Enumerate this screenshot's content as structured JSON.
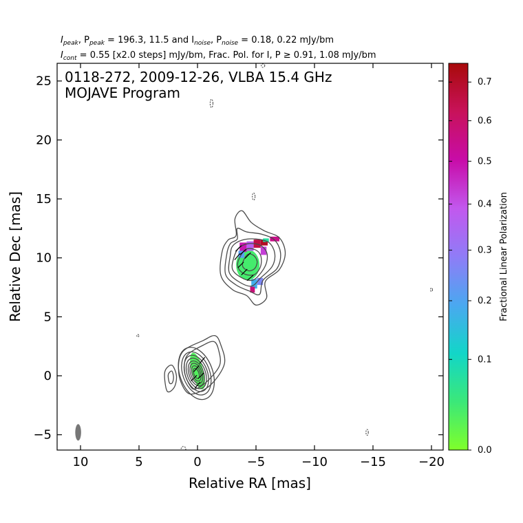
{
  "chart_data": {
    "type": "contour",
    "header": {
      "line1": {
        "p1": "I",
        "s1": "peak",
        "p2": ", P",
        "s2": "peak",
        "p3": " = 196.3, 11.5 and I",
        "s3": "noise",
        "p4": ", P",
        "s4": "noise",
        "p5": " = 0.18, 0.22 mJy/bm"
      },
      "line2": {
        "p1": "I",
        "s1": "cont",
        "p2": " = 0.55 [x2.0 steps] mJy/bm, Frac. Pol. for I, P ≥ 0.91, 1.08 mJy/bm"
      }
    },
    "annotation": {
      "line1": "0118-272, 2009-12-26, VLBA 15.4 GHz",
      "line2": "MOJAVE Program"
    },
    "xlabel": "Relative RA [mas]",
    "ylabel": "Relative Dec [mas]",
    "xlim": [
      12,
      -21
    ],
    "ylim": [
      -6.3,
      26.5
    ],
    "x_ticks": [
      10,
      5,
      0,
      -5,
      -10,
      -15,
      -20
    ],
    "x_tick_labels": [
      "10",
      "5",
      "0",
      "−5",
      "−10",
      "−15",
      "−20"
    ],
    "y_ticks": [
      -5,
      0,
      5,
      10,
      15,
      20,
      25
    ],
    "y_tick_labels": [
      "−5",
      "0",
      "5",
      "10",
      "15",
      "20",
      "25"
    ],
    "colorbar": {
      "label": "Fractional Linear Polarization",
      "range": [
        0.0,
        0.75
      ],
      "ticks": [
        0.0,
        0.1,
        0.2,
        0.3,
        0.4,
        0.5,
        0.6,
        0.7
      ],
      "tick_labels": [
        "0.0",
        "0.1",
        "0.2",
        "0.3",
        "0.4",
        "0.5",
        "0.6",
        "0.7"
      ],
      "colors": [
        "#7fff2a",
        "#3be879",
        "#12d6c8",
        "#4aa8f0",
        "#8f7cf7",
        "#c258ee",
        "#c80ca8",
        "#c8125a",
        "#a80a0a"
      ]
    },
    "contour_color": "#4a4a4a",
    "components": [
      {
        "name": "core",
        "center": [
          0.1,
          0.2
        ],
        "ellipses": [
          {
            "rx": 1.4,
            "ry": 2.3,
            "angle": -20
          },
          {
            "rx": 1.15,
            "ry": 1.9,
            "angle": -20
          },
          {
            "rx": 0.95,
            "ry": 1.6,
            "angle": -20
          },
          {
            "rx": 0.78,
            "ry": 1.35,
            "angle": -20
          },
          {
            "rx": 0.62,
            "ry": 1.1,
            "angle": -20
          },
          {
            "rx": 0.48,
            "ry": 0.9,
            "angle": -20
          },
          {
            "rx": 0.35,
            "ry": 0.68,
            "angle": -20
          },
          {
            "rx": 0.22,
            "ry": 0.45,
            "angle": -20
          }
        ],
        "outer_contours": [
          [
            [
              1.0,
              -1.3
            ],
            [
              1.6,
              0.2
            ],
            [
              1.3,
              2.0
            ],
            [
              -0.5,
              3.0
            ],
            [
              -1.5,
              3.4
            ],
            [
              -2.0,
              2.6
            ],
            [
              -2.3,
              1.0
            ],
            [
              -1.2,
              -0.7
            ],
            [
              0.2,
              -1.5
            ]
          ],
          [
            [
              0.6,
              -0.9
            ],
            [
              1.1,
              0.3
            ],
            [
              0.9,
              1.7
            ],
            [
              -0.5,
              2.6
            ],
            [
              -1.4,
              2.9
            ],
            [
              -1.8,
              2.2
            ],
            [
              -1.9,
              0.9
            ],
            [
              -0.9,
              -0.4
            ],
            [
              0.1,
              -1.1
            ]
          ]
        ],
        "polarization": {
          "center": [
            0.0,
            0.4
          ],
          "rx": 0.5,
          "ry": 1.6,
          "angle": -15,
          "fraction": 0.06
        }
      },
      {
        "name": "west-outlier",
        "contours": [
          [
            [
              2.6,
              -1.3
            ],
            [
              2.8,
              0.3
            ],
            [
              2.2,
              0.9
            ],
            [
              1.8,
              0.0
            ],
            [
              2.0,
              -1.0
            ]
          ],
          [
            [
              2.4,
              -0.6
            ],
            [
              2.5,
              0.1
            ],
            [
              2.2,
              0.4
            ],
            [
              2.05,
              -0.1
            ],
            [
              2.15,
              -0.6
            ]
          ]
        ]
      },
      {
        "name": "jet",
        "contours": [
          [
            [
              -2.1,
              10.5
            ],
            [
              -2.0,
              8.5
            ],
            [
              -3.0,
              7.3
            ],
            [
              -4.2,
              6.8
            ],
            [
              -5.0,
              6.0
            ],
            [
              -5.9,
              6.6
            ],
            [
              -5.8,
              8.0
            ],
            [
              -7.0,
              9.0
            ],
            [
              -7.5,
              10.4
            ],
            [
              -7.0,
              11.7
            ],
            [
              -5.7,
              12.3
            ],
            [
              -4.6,
              13.0
            ],
            [
              -3.8,
              14.0
            ],
            [
              -3.2,
              13.3
            ],
            [
              -3.3,
              11.9
            ],
            [
              -2.6,
              11.5
            ]
          ],
          [
            [
              -2.5,
              10.3
            ],
            [
              -2.4,
              8.6
            ],
            [
              -3.3,
              7.7
            ],
            [
              -4.4,
              7.2
            ],
            [
              -5.3,
              6.9
            ],
            [
              -5.6,
              8.1
            ],
            [
              -6.8,
              9.1
            ],
            [
              -7.1,
              10.4
            ],
            [
              -6.6,
              11.5
            ],
            [
              -5.5,
              12.0
            ],
            [
              -4.2,
              12.2
            ],
            [
              -3.4,
              12.5
            ],
            [
              -3.4,
              11.6
            ],
            [
              -2.8,
              11.2
            ]
          ],
          [
            [
              -2.8,
              10.2
            ],
            [
              -2.7,
              8.8
            ],
            [
              -3.5,
              8.0
            ],
            [
              -4.6,
              7.6
            ],
            [
              -5.4,
              8.3
            ],
            [
              -6.4,
              9.3
            ],
            [
              -6.6,
              10.4
            ],
            [
              -6.1,
              11.3
            ],
            [
              -5.0,
              11.6
            ],
            [
              -3.8,
              11.5
            ],
            [
              -3.0,
              11.0
            ]
          ],
          [
            [
              -3.1,
              10.0
            ],
            [
              -3.0,
              9.0
            ],
            [
              -3.8,
              8.3
            ],
            [
              -4.7,
              8.1
            ],
            [
              -5.4,
              8.7
            ],
            [
              -5.9,
              9.6
            ],
            [
              -5.9,
              10.5
            ],
            [
              -5.3,
              11.1
            ],
            [
              -4.3,
              11.2
            ],
            [
              -3.5,
              10.8
            ]
          ],
          [
            [
              -3.5,
              9.8
            ],
            [
              -3.5,
              9.1
            ],
            [
              -4.1,
              8.6
            ],
            [
              -4.9,
              8.6
            ],
            [
              -5.4,
              9.3
            ],
            [
              -5.4,
              10.2
            ],
            [
              -4.9,
              10.7
            ],
            [
              -4.1,
              10.7
            ]
          ],
          [
            [
              -3.9,
              9.7
            ],
            [
              -3.9,
              9.2
            ],
            [
              -4.4,
              8.9
            ],
            [
              -4.9,
              9.1
            ],
            [
              -5.1,
              9.7
            ],
            [
              -4.8,
              10.2
            ],
            [
              -4.3,
              10.3
            ]
          ]
        ],
        "polarization_cells": [
          {
            "x": -3.6,
            "y": 10.9,
            "w": 0.6,
            "h": 0.8,
            "fraction": 0.55
          },
          {
            "x": -4.2,
            "y": 11.0,
            "w": 0.6,
            "h": 0.8,
            "fraction": 0.45
          },
          {
            "x": -4.8,
            "y": 11.2,
            "w": 0.6,
            "h": 0.7,
            "fraction": 0.68
          },
          {
            "x": -5.4,
            "y": 11.3,
            "w": 0.6,
            "h": 0.5,
            "fraction": 0.72
          },
          {
            "x": -5.4,
            "y": 10.6,
            "w": 0.5,
            "h": 0.7,
            "fraction": 0.5
          },
          {
            "x": -3.5,
            "y": 10.3,
            "w": 0.5,
            "h": 0.6,
            "fraction": 0.3
          },
          {
            "x": -6.2,
            "y": 11.6,
            "w": 0.8,
            "h": 0.4,
            "fraction": 0.6
          },
          {
            "x": -5.6,
            "y": 11.5,
            "w": 0.5,
            "h": 0.3,
            "fraction": 0.14
          },
          {
            "x": -4.6,
            "y": 7.8,
            "w": 0.5,
            "h": 0.8,
            "fraction": 0.27
          },
          {
            "x": -5.1,
            "y": 8.0,
            "w": 0.5,
            "h": 0.6,
            "fraction": 0.35
          },
          {
            "x": -4.5,
            "y": 7.3,
            "w": 0.4,
            "h": 0.5,
            "fraction": 0.62
          }
        ],
        "polarization_blob": {
          "center": [
            -4.3,
            9.4
          ],
          "rx": 1.0,
          "ry": 1.3,
          "fraction": 0.08
        },
        "polarization_ticks": [
          {
            "x": -3.5,
            "y": 10.8,
            "angle": 45
          },
          {
            "x": -3.9,
            "y": 10.5,
            "angle": 40
          },
          {
            "x": -4.3,
            "y": 10.2,
            "angle": 45
          },
          {
            "x": -3.4,
            "y": 10.1,
            "angle": 50
          },
          {
            "x": -3.7,
            "y": 9.4,
            "angle": 45
          },
          {
            "x": -4.0,
            "y": 8.8,
            "angle": 45
          },
          {
            "x": -4.5,
            "y": 8.3,
            "angle": 40
          },
          {
            "x": -0.4,
            "y": 1.3,
            "angle": 50
          },
          {
            "x": 0.1,
            "y": 0.6,
            "angle": 50
          },
          {
            "x": 0.3,
            "y": -0.2,
            "angle": 45
          },
          {
            "x": -0.3,
            "y": 0.0,
            "angle": 45
          },
          {
            "x": 0.0,
            "y": -0.8,
            "angle": 50
          }
        ]
      }
    ],
    "negative_contours": [
      {
        "x": -1.2,
        "y": 23.1,
        "rx": 0.12,
        "ry": 0.35
      },
      {
        "x": -4.8,
        "y": 15.2,
        "rx": 0.12,
        "ry": 0.3
      },
      {
        "x": -20.0,
        "y": 7.3,
        "rx": 0.08,
        "ry": 0.15
      },
      {
        "x": -14.5,
        "y": -4.8,
        "rx": 0.1,
        "ry": 0.25
      },
      {
        "x": 5.1,
        "y": 3.4,
        "rx": 0.04,
        "ry": 0.1
      },
      {
        "x": 1.2,
        "y": -6.2,
        "rx": 0.2,
        "ry": 0.2
      },
      {
        "x": -5.6,
        "y": 26.3,
        "rx": 0.15,
        "ry": 0.15
      }
    ],
    "beam": {
      "x": 10.2,
      "y": -4.8,
      "rx": 0.25,
      "ry": 0.7,
      "angle": 0
    }
  }
}
